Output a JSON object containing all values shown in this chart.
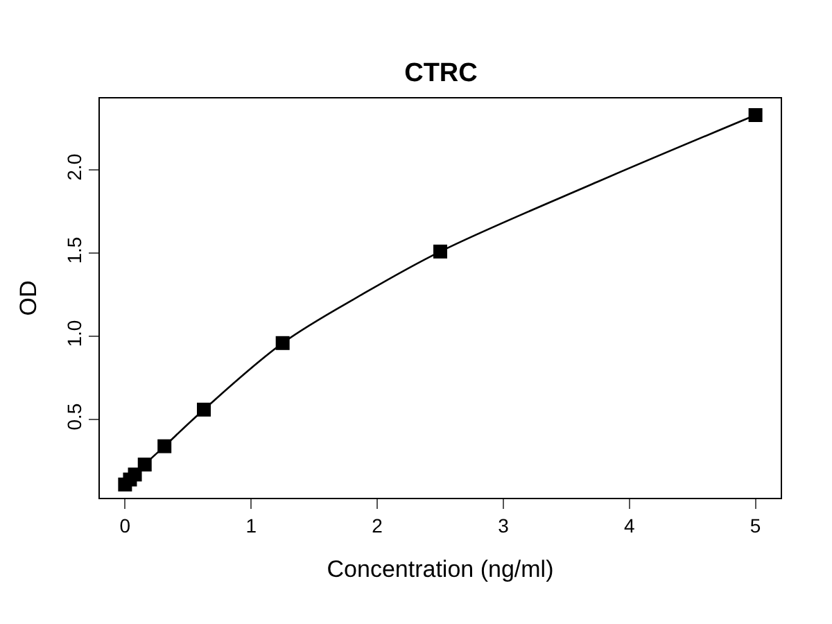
{
  "chart_data": {
    "type": "scatter",
    "title": "CTRC",
    "xlabel": "Concentration (ng/ml)",
    "ylabel": "OD",
    "x": [
      0,
      0.039,
      0.078,
      0.156,
      0.3125,
      0.625,
      1.25,
      2.5,
      5
    ],
    "series": [
      {
        "color": "#000000",
        "marker": "square",
        "values": [
          0.11,
          0.14,
          0.17,
          0.23,
          0.34,
          0.56,
          0.96,
          1.51,
          2.33
        ]
      },
      {
        "type": "line",
        "color": "#000000",
        "line_style": "solid",
        "marker": "none",
        "x": [
          0,
          0.156,
          0.3125,
          0.625,
          1.25,
          1.875,
          2.5,
          3.75,
          5
        ],
        "values": [
          0.11,
          0.23,
          0.34,
          0.56,
          0.96,
          1.25,
          1.51,
          1.93,
          2.33
        ]
      }
    ],
    "xlim": [
      -0.2,
      5.2
    ],
    "xticks": [
      0,
      1,
      2,
      3,
      4,
      5
    ],
    "ylim": [
      0.03,
      2.43
    ],
    "yticks": [
      {
        "value": 0.5,
        "label": "0.5"
      },
      {
        "value": 1,
        "label": "1.0"
      },
      {
        "value": 1.5,
        "label": "1.5"
      },
      {
        "value": 2,
        "label": "2.0"
      }
    ]
  }
}
